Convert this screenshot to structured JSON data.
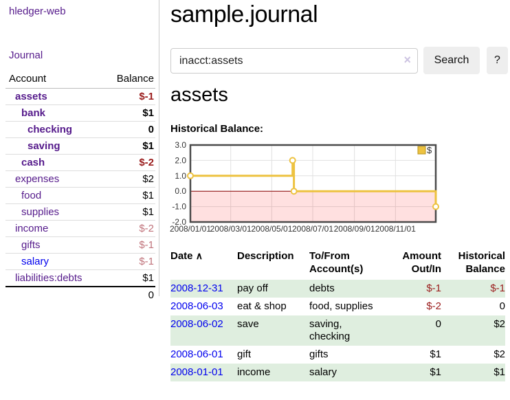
{
  "colors": {
    "link_visited_purple": "#551a8b",
    "link_unvisited_blue": "#0000ee",
    "negative_strong": "#9a1c1c",
    "negative_soft": "#c0737b",
    "register_row_green": "#dfeedf",
    "button_gray": "#eeeeee"
  },
  "sidebar": {
    "app_title": "hledger-web",
    "nav_journal": "Journal",
    "accounts_table": {
      "headers": {
        "account": "Account",
        "balance": "Balance"
      },
      "rows": [
        {
          "name": "assets",
          "depth": 1,
          "emphasis": true,
          "balance": "$-1",
          "negative": "strong",
          "link": "visited"
        },
        {
          "name": "bank",
          "depth": 2,
          "emphasis": true,
          "balance": "$1",
          "negative": null,
          "link": "visited"
        },
        {
          "name": "checking",
          "depth": 3,
          "emphasis": true,
          "balance": "0",
          "negative": null,
          "link": "visited"
        },
        {
          "name": "saving",
          "depth": 3,
          "emphasis": true,
          "balance": "$1",
          "negative": null,
          "link": "visited"
        },
        {
          "name": "cash",
          "depth": 2,
          "emphasis": true,
          "balance": "$-2",
          "negative": "strong",
          "link": "visited"
        },
        {
          "name": "expenses",
          "depth": 1,
          "emphasis": false,
          "balance": "$2",
          "negative": null,
          "link": "visited"
        },
        {
          "name": "food",
          "depth": 2,
          "emphasis": false,
          "balance": "$1",
          "negative": null,
          "link": "visited"
        },
        {
          "name": "supplies",
          "depth": 2,
          "emphasis": false,
          "balance": "$1",
          "negative": null,
          "link": "visited"
        },
        {
          "name": "income",
          "depth": 1,
          "emphasis": false,
          "balance": "$-2",
          "negative": "soft",
          "link": "visited"
        },
        {
          "name": "gifts",
          "depth": 2,
          "emphasis": false,
          "balance": "$-1",
          "negative": "soft",
          "link": "visited"
        },
        {
          "name": "salary",
          "depth": 2,
          "emphasis": false,
          "balance": "$-1",
          "negative": "soft",
          "link": "unvisited"
        },
        {
          "name": "liabilities:debts",
          "depth": 1,
          "emphasis": false,
          "balance": "$1",
          "negative": null,
          "link": "visited"
        }
      ],
      "total": "0"
    }
  },
  "header": {
    "title": "sample.journal"
  },
  "search": {
    "query": "inacct:assets",
    "clear_icon": "×",
    "search_label": "Search",
    "help_label": "?"
  },
  "main": {
    "account_heading": "assets",
    "chart_heading": "Historical Balance:"
  },
  "chart_data": {
    "type": "line",
    "step": true,
    "title": "Historical Balance:",
    "series": [
      {
        "name": "$",
        "color": "#edc240",
        "points": [
          [
            "2008-01-01",
            1
          ],
          [
            "2008-06-01",
            2
          ],
          [
            "2008-06-03",
            0
          ],
          [
            "2008-12-31",
            -1
          ]
        ]
      }
    ],
    "x_range": [
      "2008-01-01",
      "2008-12-31"
    ],
    "ylim": [
      -2,
      3
    ],
    "yticks": [
      3,
      2,
      1,
      0,
      -1,
      -2
    ],
    "ytick_labels": [
      "3.0",
      "2.0",
      "1.0",
      "0.0",
      "-1.0",
      "-2.0"
    ],
    "xticks": [
      "2008-01-01",
      "2008-03-01",
      "2008-05-01",
      "2008-07-01",
      "2008-09-01",
      "2008-11-01"
    ],
    "xtick_labels": [
      "2008/01/01",
      "2008/03/01",
      "2008/05/01",
      "2008/07/01",
      "2008/09/01",
      "2008/11/01"
    ],
    "grid": true,
    "legend_position": "top-right",
    "negative_region_fill": "rgba(255,0,0,0.12)",
    "zero_line_color": "#8b0000",
    "plot_border_color": "#4a4a4a",
    "grid_color": "#e0e0e0",
    "marker_fill": "#ffffff"
  },
  "register": {
    "headers": {
      "date": "Date",
      "sort_icon": "∧",
      "description": "Description",
      "accounts": "To/From\nAccount(s)",
      "amount": "Amount\nOut/In",
      "balance": "Historical\nBalance"
    },
    "rows": [
      {
        "date": "2008-12-31",
        "description": "pay off",
        "accounts": "debts",
        "amount": "$-1",
        "amount_negative": true,
        "balance": "$-1",
        "balance_negative": true
      },
      {
        "date": "2008-06-03",
        "description": "eat & shop",
        "accounts": "food, supplies",
        "amount": "$-2",
        "amount_negative": true,
        "balance": "0",
        "balance_negative": false
      },
      {
        "date": "2008-06-02",
        "description": "save",
        "accounts": "saving,\nchecking",
        "amount": "0",
        "amount_negative": false,
        "balance": "$2",
        "balance_negative": false
      },
      {
        "date": "2008-06-01",
        "description": "gift",
        "accounts": "gifts",
        "amount": "$1",
        "amount_negative": false,
        "balance": "$2",
        "balance_negative": false
      },
      {
        "date": "2008-01-01",
        "description": "income",
        "accounts": "salary",
        "amount": "$1",
        "amount_negative": false,
        "balance": "$1",
        "balance_negative": false
      }
    ]
  }
}
